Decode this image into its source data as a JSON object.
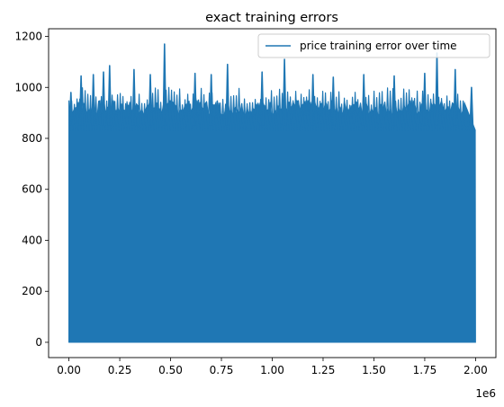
{
  "chart_data": {
    "type": "line",
    "title": "exact training errors",
    "xlabel": "",
    "ylabel": "",
    "x_offset_label": "1e6",
    "xlim": [
      -0.1,
      2.1
    ],
    "ylim": [
      -60,
      1230
    ],
    "x_ticks": [
      0.0,
      0.25,
      0.5,
      0.75,
      1.0,
      1.25,
      1.5,
      1.75,
      2.0
    ],
    "x_tick_labels": [
      "0.00",
      "0.25",
      "0.50",
      "0.75",
      "1.00",
      "1.25",
      "1.50",
      "1.75",
      "2.00"
    ],
    "y_ticks": [
      0,
      200,
      400,
      600,
      800,
      1000,
      1200
    ],
    "y_tick_labels": [
      "0",
      "200",
      "400",
      "600",
      "800",
      "1000",
      "1200"
    ],
    "grid": false,
    "legend_position": "top-right",
    "series": [
      {
        "name": "price training error over time",
        "color": "#1f77b4",
        "x_range": [
          0.0,
          2.0
        ],
        "y_min": 0,
        "typical_peak": 950,
        "peaks": [
          {
            "x": 0.01,
            "y": 980
          },
          {
            "x": 0.06,
            "y": 1045
          },
          {
            "x": 0.12,
            "y": 1050
          },
          {
            "x": 0.17,
            "y": 1060
          },
          {
            "x": 0.2,
            "y": 1085
          },
          {
            "x": 0.32,
            "y": 1070
          },
          {
            "x": 0.4,
            "y": 1050
          },
          {
            "x": 0.47,
            "y": 1170
          },
          {
            "x": 0.62,
            "y": 1055
          },
          {
            "x": 0.7,
            "y": 1050
          },
          {
            "x": 0.78,
            "y": 1090
          },
          {
            "x": 0.95,
            "y": 1060
          },
          {
            "x": 1.06,
            "y": 1110
          },
          {
            "x": 1.2,
            "y": 1050
          },
          {
            "x": 1.3,
            "y": 1040
          },
          {
            "x": 1.45,
            "y": 1050
          },
          {
            "x": 1.6,
            "y": 1045
          },
          {
            "x": 1.75,
            "y": 1055
          },
          {
            "x": 1.81,
            "y": 1135
          },
          {
            "x": 1.9,
            "y": 1070
          },
          {
            "x": 1.98,
            "y": 1000
          }
        ],
        "end_value": 830
      }
    ]
  }
}
